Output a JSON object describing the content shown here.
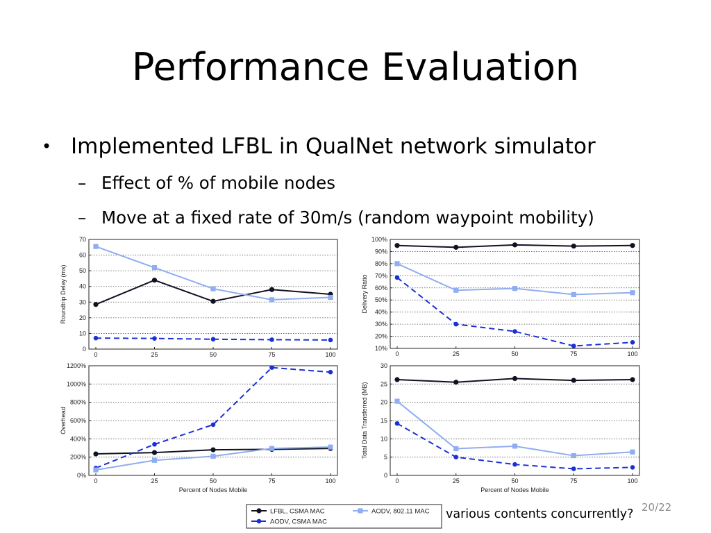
{
  "slide": {
    "title": "Performance Evaluation",
    "bullet_mark": "•",
    "bullet": "Implemented LFBL in QualNet network simulator",
    "dash": "–",
    "sub_bullets": [
      "Effect of % of mobile nodes",
      "Move at a fixed rate of 30m/s (random waypoint mobility)"
    ],
    "caption": "various contents concurrently?",
    "page_number": "20/22"
  },
  "colors": {
    "lfbl": "#111122",
    "aodv_csma": "#1a2fd6",
    "aodv_80211": "#8fadf0",
    "grid": "#555555"
  },
  "legend": [
    {
      "label": "LFBL, CSMA MAC",
      "series": "lfbl"
    },
    {
      "label": "AODV, CSMA MAC",
      "series": "aodv_csma"
    },
    {
      "label": "AODV, 802.11 MAC",
      "series": "aodv_80211"
    }
  ],
  "chart_data": [
    {
      "id": "roundtrip-delay",
      "type": "line",
      "title": "",
      "xlabel": "",
      "ylabel": "Roundtrip Delay (ms)",
      "x": [
        0,
        25,
        50,
        75,
        100
      ],
      "x_tick_labels": [
        "0",
        "25",
        "50",
        "75",
        "100"
      ],
      "ylim": [
        0,
        70
      ],
      "y_ticks": [
        0,
        10,
        20,
        30,
        40,
        50,
        60,
        70
      ],
      "y_tick_labels": [
        "0",
        "10",
        "20",
        "30",
        "40",
        "50",
        "60",
        "70"
      ],
      "grid": true,
      "series": [
        {
          "key": "lfbl",
          "name": "LFBL, CSMA MAC",
          "values": [
            28.5,
            44,
            30.5,
            38,
            35
          ]
        },
        {
          "key": "aodv_csma",
          "name": "AODV, CSMA MAC",
          "values": [
            7,
            6.8,
            6.3,
            6,
            5.8
          ]
        },
        {
          "key": "aodv_80211",
          "name": "AODV, 802.11 MAC",
          "values": [
            65.5,
            52,
            38.5,
            31.5,
            33
          ]
        }
      ]
    },
    {
      "id": "delivery-ratio",
      "type": "line",
      "title": "",
      "xlabel": "",
      "ylabel": "Delivery Ratio",
      "x": [
        0,
        25,
        50,
        75,
        100
      ],
      "x_tick_labels": [
        "0",
        "25",
        "50",
        "75",
        "100"
      ],
      "ylim": [
        10,
        100
      ],
      "y_ticks": [
        10,
        20,
        30,
        40,
        50,
        60,
        70,
        80,
        90,
        100
      ],
      "y_tick_labels": [
        "10%",
        "20%",
        "30%",
        "40%",
        "50%",
        "60%",
        "70%",
        "80%",
        "90%",
        "100%"
      ],
      "grid": true,
      "series": [
        {
          "key": "lfbl",
          "name": "LFBL, CSMA MAC",
          "values": [
            95,
            93.5,
            95.5,
            94.5,
            95
          ]
        },
        {
          "key": "aodv_csma",
          "name": "AODV, CSMA MAC",
          "values": [
            68.5,
            30,
            24,
            12,
            15
          ]
        },
        {
          "key": "aodv_80211",
          "name": "AODV, 802.11 MAC",
          "values": [
            80,
            58,
            59.5,
            54.5,
            56
          ]
        }
      ]
    },
    {
      "id": "overhead",
      "type": "line",
      "title": "",
      "xlabel": "Percent of Nodes Mobile",
      "ylabel": "Overhead",
      "x": [
        0,
        25,
        50,
        75,
        100
      ],
      "x_tick_labels": [
        "0",
        "25",
        "50",
        "75",
        "100"
      ],
      "ylim": [
        0,
        1200
      ],
      "y_ticks": [
        0,
        200,
        400,
        600,
        800,
        1000,
        1200
      ],
      "y_tick_labels": [
        "0%",
        "200%",
        "400%",
        "600%",
        "800%",
        "1000%",
        "1200%"
      ],
      "grid": true,
      "series": [
        {
          "key": "lfbl",
          "name": "LFBL, CSMA MAC",
          "values": [
            235,
            250,
            280,
            285,
            295
          ]
        },
        {
          "key": "aodv_csma",
          "name": "AODV, CSMA MAC",
          "values": [
            80,
            340,
            555,
            1180,
            1130
          ]
        },
        {
          "key": "aodv_80211",
          "name": "AODV, 802.11 MAC",
          "values": [
            60,
            165,
            210,
            295,
            310
          ]
        }
      ]
    },
    {
      "id": "data-transferred",
      "type": "line",
      "title": "",
      "xlabel": "Percent of Nodes Mobile",
      "ylabel": "Total Data Transferred (MB)",
      "x": [
        0,
        25,
        50,
        75,
        100
      ],
      "x_tick_labels": [
        "0",
        "25",
        "50",
        "75",
        "100"
      ],
      "ylim": [
        0,
        30
      ],
      "y_ticks": [
        0,
        5,
        10,
        15,
        20,
        25,
        30
      ],
      "y_tick_labels": [
        "0",
        "5",
        "10",
        "15",
        "20",
        "25",
        "30"
      ],
      "grid": true,
      "series": [
        {
          "key": "lfbl",
          "name": "LFBL, CSMA MAC",
          "values": [
            26.2,
            25.5,
            26.5,
            26,
            26.2
          ]
        },
        {
          "key": "aodv_csma",
          "name": "AODV, CSMA MAC",
          "values": [
            14.2,
            5,
            3,
            1.8,
            2.2
          ]
        },
        {
          "key": "aodv_80211",
          "name": "AODV, 802.11 MAC",
          "values": [
            20.3,
            7.3,
            8,
            5.4,
            6.4
          ]
        }
      ]
    }
  ]
}
